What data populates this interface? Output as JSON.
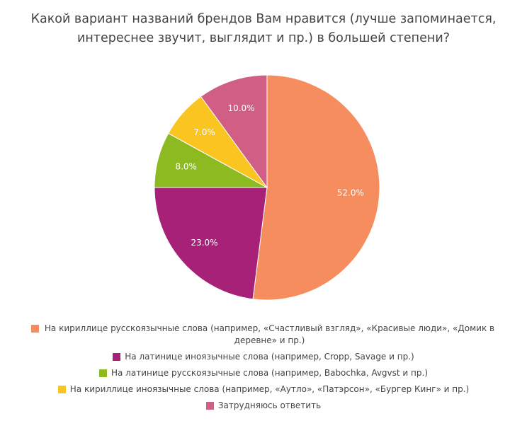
{
  "title": {
    "line1": "Какой вариант названий брендов Вам нравится (лучше запоминается,",
    "line2": "интереснее звучит, выглядит и пр.) в большей степени?"
  },
  "chart_data": {
    "type": "pie",
    "title": "Какой вариант названий брендов Вам нравится (лучше запоминается, интереснее звучит, выглядит и пр.) в большей степени?",
    "start": "12 o'clock, clockwise",
    "slices": [
      {
        "label": "На кириллице русскоязычные слова (например, «Счастливый взгляд», «Красивые люди», «Домик в деревне» и пр.)",
        "value": 52.0,
        "display": "52.0%",
        "color": "#f58d5e"
      },
      {
        "label": "На латинице иноязычные слова (например, Cropp, Savage и пр.)",
        "value": 23.0,
        "display": "23.0%",
        "color": "#a62177"
      },
      {
        "label": "На латинице русскоязычные слова (например, Babochka, Avgvst и пр.)",
        "value": 8.0,
        "display": "8.0%",
        "color": "#8dba21"
      },
      {
        "label": "На кириллице иноязычные слова (например, «Аутло», «Патэрсон», «Бургер Кинг» и пр.)",
        "value": 7.0,
        "display": "7.0%",
        "color": "#fac421"
      },
      {
        "label": "Затрудняюсь ответить",
        "value": 10.0,
        "display": "10.0%",
        "color": "#d05e85"
      }
    ],
    "legend_position": "bottom"
  }
}
